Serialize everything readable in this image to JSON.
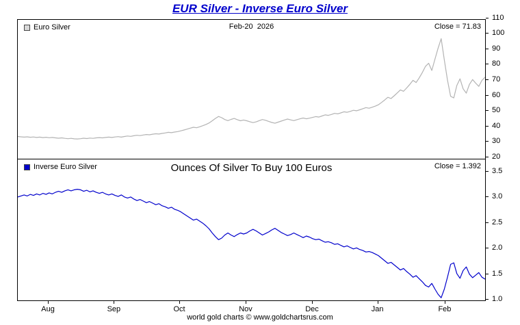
{
  "page": {
    "title": "EUR Silver - Inverse Euro Silver",
    "footer": "world gold charts © www.goldchartsrus.com"
  },
  "chart_data": [
    {
      "type": "line",
      "name": "Euro Silver",
      "panel_title": "Feb-20  2026",
      "close_label": "Close = 71.83",
      "close_value": 71.83,
      "line_color": "#b3b3b3",
      "legend_color": "#d8d8d8",
      "ylim": [
        19,
        109
      ],
      "yticks": [
        "110",
        "100",
        "90",
        "80",
        "70",
        "60",
        "50",
        "40",
        "30",
        "20"
      ],
      "legend_position": "top-left",
      "grid": false,
      "values": [
        33.4,
        33.2,
        33.0,
        33.2,
        32.9,
        33.1,
        32.8,
        33.0,
        32.7,
        32.9,
        32.6,
        32.8,
        32.5,
        32.3,
        32.5,
        32.2,
        32.0,
        32.2,
        31.9,
        31.8,
        32.0,
        32.3,
        32.1,
        32.4,
        32.2,
        32.5,
        32.7,
        32.5,
        32.8,
        33.0,
        32.8,
        33.1,
        33.3,
        33.0,
        33.4,
        33.7,
        33.5,
        33.9,
        34.2,
        34.0,
        34.4,
        34.7,
        34.5,
        34.9,
        35.2,
        35.0,
        35.4,
        35.7,
        36.1,
        35.9,
        36.3,
        36.6,
        37.1,
        37.6,
        38.2,
        38.8,
        39.4,
        39.1,
        39.7,
        40.4,
        41.2,
        42.2,
        43.6,
        45.1,
        46.4,
        45.6,
        44.4,
        43.7,
        44.5,
        45.1,
        44.3,
        43.6,
        44.1,
        43.6,
        43.0,
        42.4,
        42.9,
        43.7,
        44.4,
        43.9,
        43.2,
        42.5,
        42.0,
        42.7,
        43.4,
        44.1,
        44.7,
        44.2,
        43.7,
        44.3,
        44.9,
        45.4,
        44.9,
        45.3,
        45.8,
        46.3,
        46.0,
        46.7,
        47.4,
        47.1,
        47.7,
        48.4,
        48.1,
        48.7,
        49.4,
        49.1,
        49.7,
        50.4,
        50.1,
        50.7,
        51.4,
        52.1,
        51.7,
        52.4,
        53.1,
        54.0,
        55.5,
        57.1,
        58.8,
        58.0,
        59.8,
        61.7,
        63.6,
        62.7,
        64.9,
        67.2,
        69.8,
        68.4,
        71.4,
        74.9,
        78.9,
        80.9,
        76.2,
        83.5,
        90.5,
        96.8,
        83.0,
        70.0,
        59.5,
        58.4,
        66.5,
        70.8,
        64.3,
        61.5,
        67.2,
        70.3,
        68.0,
        65.9,
        69.8,
        71.83
      ]
    },
    {
      "type": "line",
      "name": "Inverse Euro Silver",
      "panel_title": "Ounces Of Silver To Buy 100 Euros",
      "close_label": "Close = 1.392",
      "close_value": 1.392,
      "line_color": "#0000cc",
      "legend_color": "#0000cc",
      "ylim": [
        0.98,
        3.72
      ],
      "yticks": [
        "3.5",
        "3.0",
        "2.5",
        "2.0",
        "1.5",
        "1.0"
      ],
      "legend_position": "top-left",
      "grid": false,
      "values": [
        2.99,
        3.01,
        3.03,
        3.01,
        3.04,
        3.02,
        3.05,
        3.03,
        3.06,
        3.04,
        3.07,
        3.05,
        3.08,
        3.1,
        3.08,
        3.11,
        3.13,
        3.11,
        3.13,
        3.14,
        3.13,
        3.1,
        3.12,
        3.09,
        3.11,
        3.08,
        3.06,
        3.08,
        3.05,
        3.03,
        3.05,
        3.02,
        3.0,
        3.03,
        2.99,
        2.97,
        2.99,
        2.95,
        2.92,
        2.94,
        2.91,
        2.88,
        2.9,
        2.87,
        2.84,
        2.86,
        2.82,
        2.8,
        2.77,
        2.79,
        2.75,
        2.73,
        2.7,
        2.66,
        2.62,
        2.58,
        2.54,
        2.56,
        2.52,
        2.48,
        2.43,
        2.37,
        2.29,
        2.22,
        2.16,
        2.19,
        2.25,
        2.29,
        2.25,
        2.22,
        2.26,
        2.29,
        2.27,
        2.29,
        2.33,
        2.36,
        2.33,
        2.29,
        2.25,
        2.28,
        2.31,
        2.35,
        2.38,
        2.34,
        2.3,
        2.27,
        2.24,
        2.26,
        2.29,
        2.26,
        2.23,
        2.2,
        2.23,
        2.21,
        2.18,
        2.16,
        2.17,
        2.14,
        2.11,
        2.12,
        2.1,
        2.07,
        2.08,
        2.05,
        2.02,
        2.04,
        2.01,
        1.98,
        2.0,
        1.97,
        1.95,
        1.92,
        1.93,
        1.91,
        1.88,
        1.85,
        1.8,
        1.75,
        1.7,
        1.72,
        1.67,
        1.62,
        1.57,
        1.6,
        1.54,
        1.49,
        1.43,
        1.46,
        1.4,
        1.34,
        1.27,
        1.24,
        1.31,
        1.2,
        1.1,
        1.03,
        1.2,
        1.43,
        1.68,
        1.71,
        1.5,
        1.41,
        1.56,
        1.63,
        1.49,
        1.42,
        1.47,
        1.52,
        1.43,
        1.392
      ]
    }
  ],
  "x_axis": {
    "labels": [
      {
        "label": "Aug",
        "pos": 0.066
      },
      {
        "label": "Sep",
        "pos": 0.207
      },
      {
        "label": "Oct",
        "pos": 0.347
      },
      {
        "label": "Nov",
        "pos": 0.489
      },
      {
        "label": "Dec",
        "pos": 0.631
      },
      {
        "label": "Jan",
        "pos": 0.771
      },
      {
        "label": "Feb",
        "pos": 0.915
      }
    ]
  }
}
